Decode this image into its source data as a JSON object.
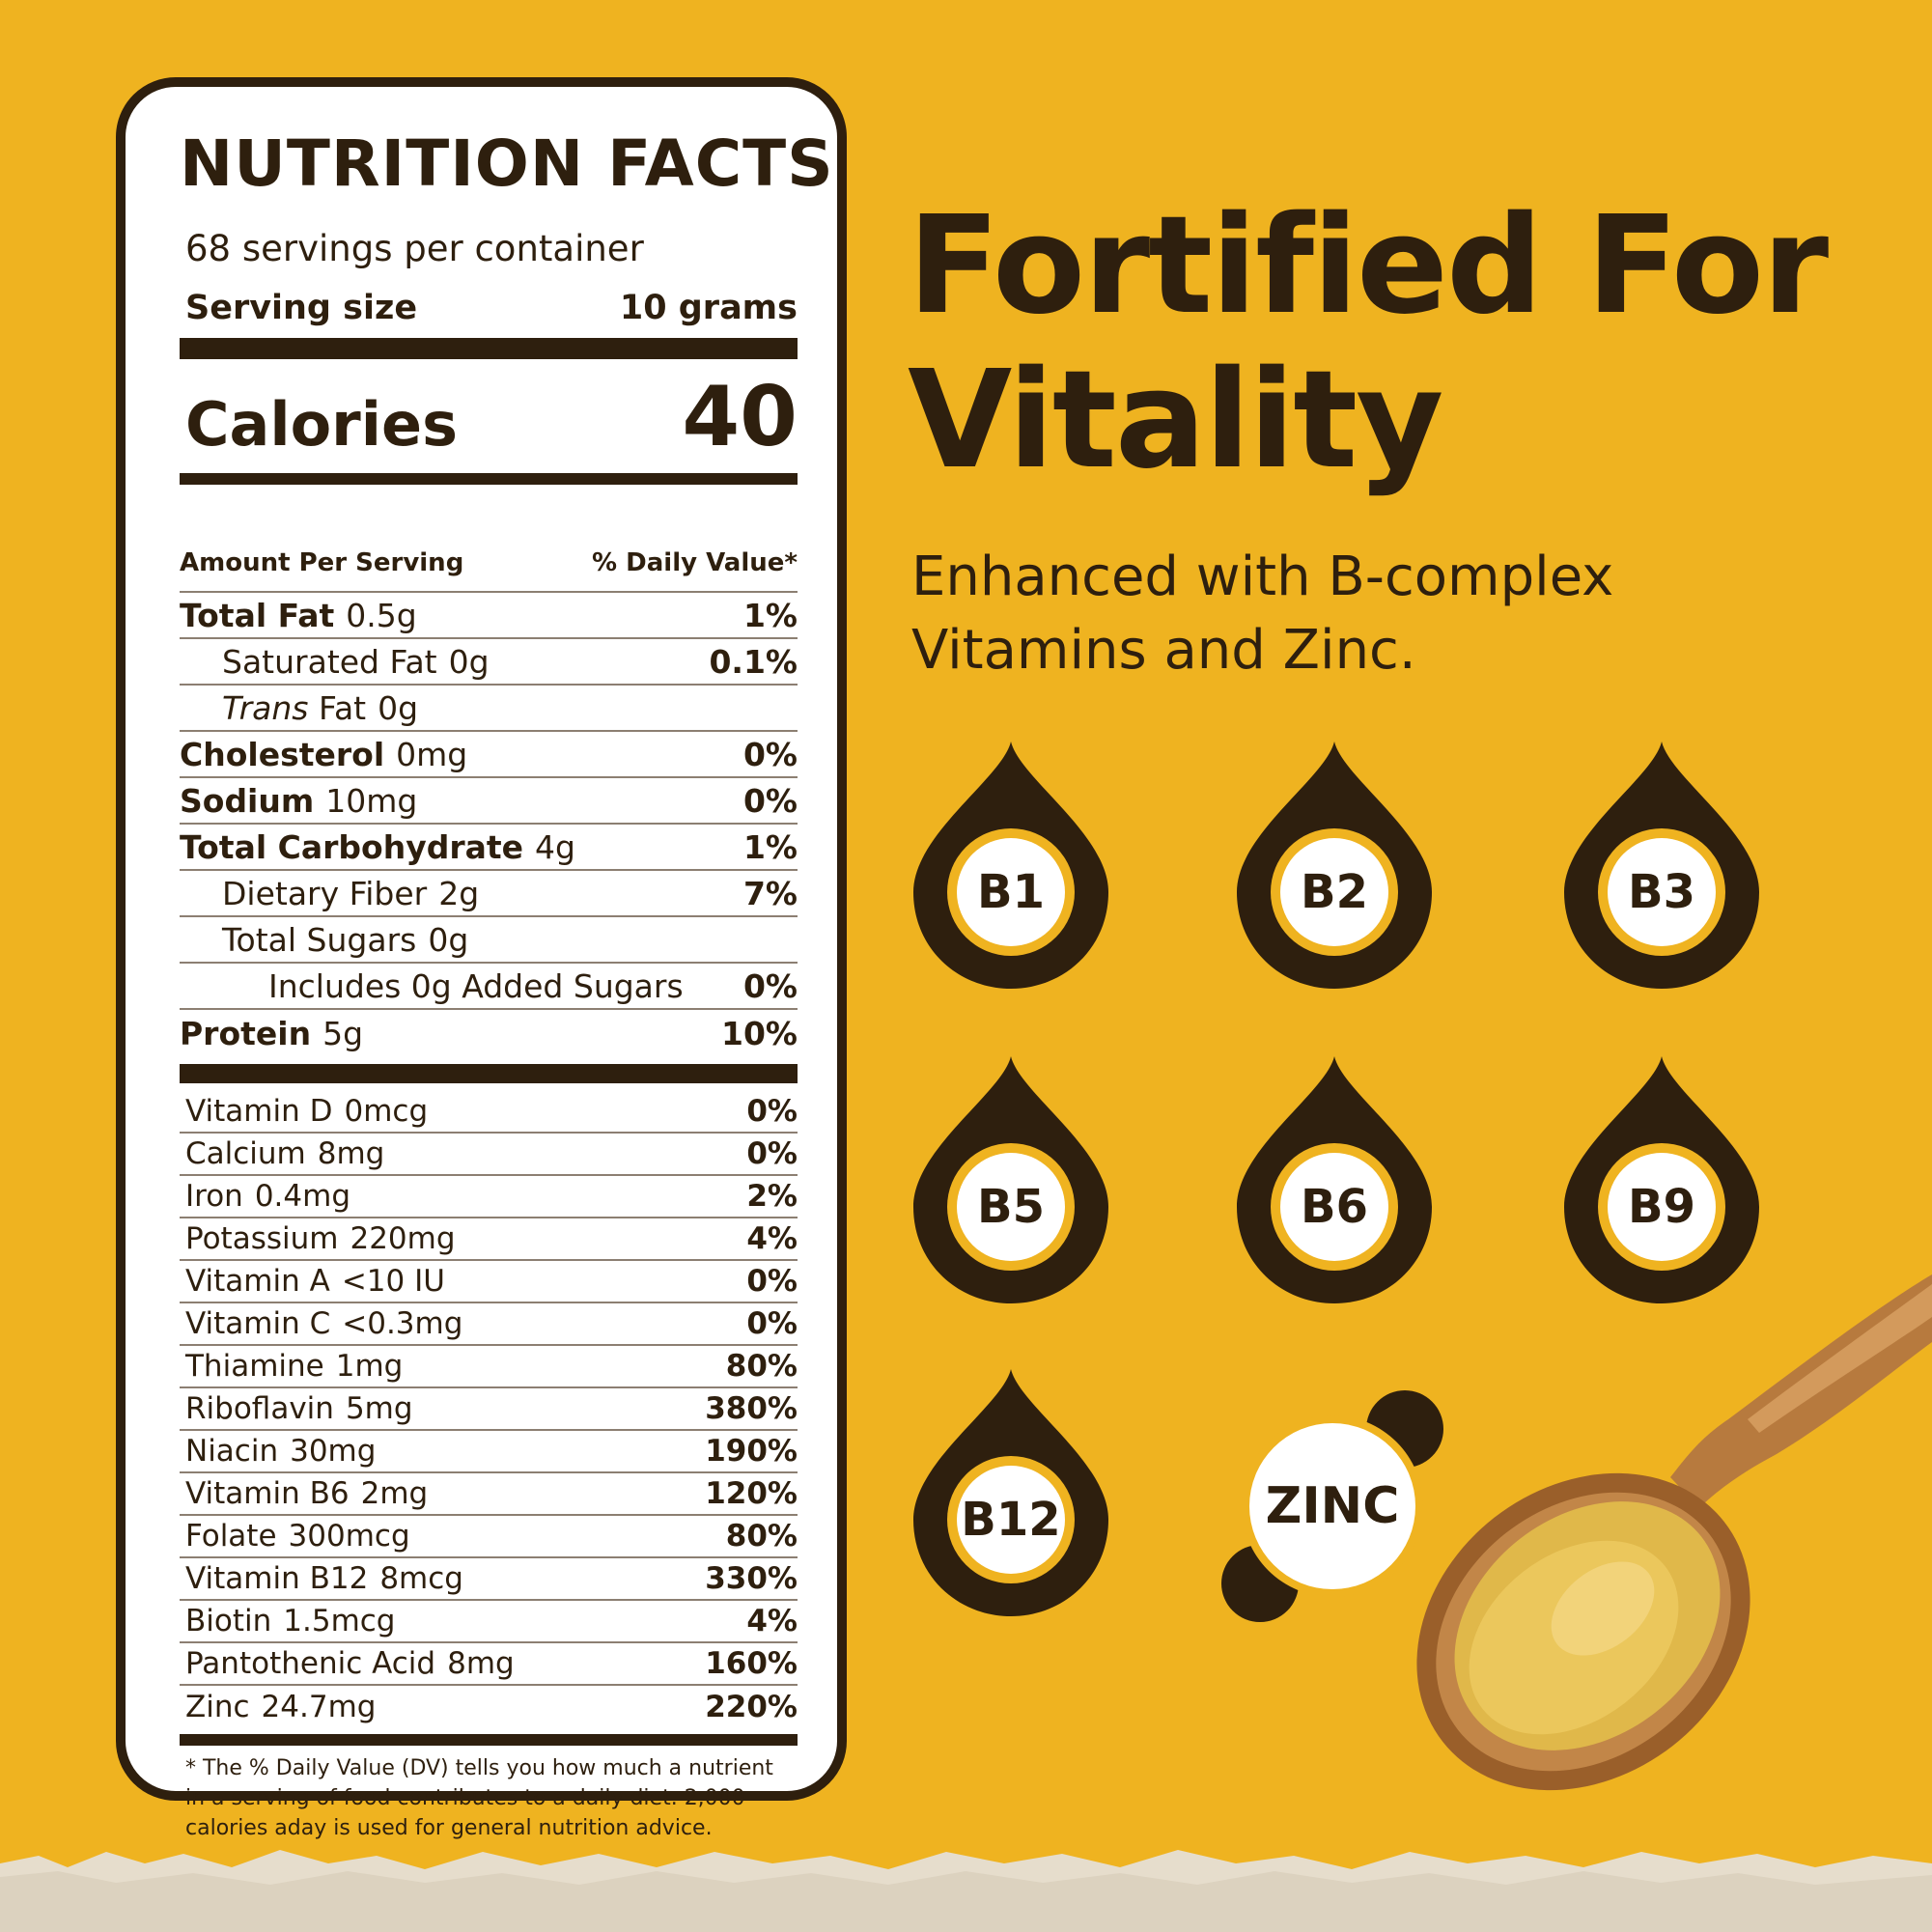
{
  "colors": {
    "background": "#EFB320",
    "text": "#2E1F0E",
    "label_bg": "#FFFFFF",
    "badge_ring": "#EFB320",
    "ground": "#E6DDCC"
  },
  "label": {
    "title": "NUTRITION  FACTS",
    "servings": "68 servings per container",
    "serving_size_label": "Serving size",
    "serving_size_value": "10 grams",
    "calories_label": "Calories",
    "calories_value": "40",
    "amount_per_serving": "Amount Per Serving",
    "daily_value_header": "% Daily Value*",
    "nutrients": [
      {
        "name": "Total Fat",
        "amount": "0.5g",
        "dv": "1%"
      },
      {
        "name": "Saturated Fat",
        "amount": "0g",
        "dv": "0.1%"
      },
      {
        "name_italic": "Trans",
        "name": "Fat",
        "amount": "0g",
        "dv": ""
      },
      {
        "name": "Cholesterol",
        "amount": "0mg",
        "dv": "0%"
      },
      {
        "name": "Sodium",
        "amount": "10mg",
        "dv": "0%"
      },
      {
        "name": "Total Carbohydrate",
        "amount": "4g",
        "dv": "1%"
      },
      {
        "name": "Dietary Fiber",
        "amount": "2g",
        "dv": "7%"
      },
      {
        "name": "Total Sugars",
        "amount": "0g",
        "dv": ""
      },
      {
        "name": "Includes 0g Added Sugars",
        "amount": "",
        "dv": "0%"
      },
      {
        "name": "Protein",
        "amount": "5g",
        "dv": "10%"
      }
    ],
    "vitamins": [
      {
        "name": "Vitamin D",
        "amount": "0mcg",
        "dv": "0%"
      },
      {
        "name": "Calcium",
        "amount": "8mg",
        "dv": "0%"
      },
      {
        "name": "Iron",
        "amount": "0.4mg",
        "dv": "2%"
      },
      {
        "name": "Potassium",
        "amount": "220mg",
        "dv": "4%"
      },
      {
        "name": "Vitamin A",
        "amount": "<10 IU",
        "dv": "0%"
      },
      {
        "name": "Vitamin C",
        "amount": "<0.3mg",
        "dv": "0%"
      },
      {
        "name": "Thiamine",
        "amount": "1mg",
        "dv": "80%"
      },
      {
        "name": "Riboflavin",
        "amount": "5mg",
        "dv": "380%"
      },
      {
        "name": "Niacin",
        "amount": "30mg",
        "dv": "190%"
      },
      {
        "name": "Vitamin B6",
        "amount": "2mg",
        "dv": "120%"
      },
      {
        "name": "Folate",
        "amount": "300mcg",
        "dv": "80%"
      },
      {
        "name": "Vitamin B12",
        "amount": "8mcg",
        "dv": "330%"
      },
      {
        "name": "Biotin",
        "amount": "1.5mcg",
        "dv": "4%"
      },
      {
        "name": "Pantothenic Acid",
        "amount": "8mg",
        "dv": "160%"
      },
      {
        "name": "Zinc",
        "amount": "24.7mg",
        "dv": "220%"
      }
    ],
    "footnote": "* The % Daily Value (DV) tells you how much a nutrient in a serving of food contributes to a daily diet. 2,000 calories aday is used for general nutrition advice."
  },
  "headline": {
    "line1": "Fortified For",
    "line2": "Vitality"
  },
  "subline": {
    "line1": "Enhanced with B-complex",
    "line2": "Vitamins and Zinc."
  },
  "badges": [
    "B1",
    "B2",
    "B3",
    "B5",
    "B6",
    "B9",
    "B12"
  ],
  "zinc_label": "ZINC",
  "icons": {
    "badge": "droplet-icon",
    "zinc": "mineral-icon",
    "spoon": "wooden-spoon-icon"
  }
}
